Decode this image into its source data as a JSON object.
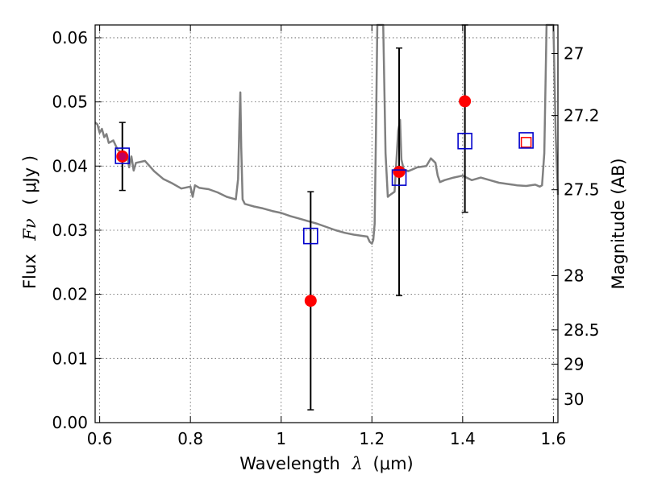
{
  "chart_data": {
    "type": "scatter",
    "title": "",
    "xlabel_text": "Wavelength",
    "xlabel_symbol": "λ",
    "xlabel_unit": "(μm)",
    "ylabel_text": "Flux",
    "ylabel_symbol": "Fν",
    "ylabel_unit": "( μJy )",
    "y2label": "Magnitude (AB)",
    "xlim": [
      0.59,
      1.61
    ],
    "ylim": [
      0.0,
      0.062
    ],
    "grid": true,
    "x_ticks": [
      {
        "value": 0.6,
        "label": "0.6"
      },
      {
        "value": 0.8,
        "label": "0.8"
      },
      {
        "value": 1.0,
        "label": "1"
      },
      {
        "value": 1.2,
        "label": "1.2"
      },
      {
        "value": 1.4,
        "label": "1.4"
      },
      {
        "value": 1.6,
        "label": "1.6"
      }
    ],
    "y_ticks": [
      {
        "value": 0.0,
        "label": "0.00"
      },
      {
        "value": 0.01,
        "label": "0.01"
      },
      {
        "value": 0.02,
        "label": "0.02"
      },
      {
        "value": 0.03,
        "label": "0.03"
      },
      {
        "value": 0.04,
        "label": "0.04"
      },
      {
        "value": 0.05,
        "label": "0.05"
      },
      {
        "value": 0.06,
        "label": "0.06"
      }
    ],
    "y2_ticks": [
      {
        "value": 27.0,
        "label": "27"
      },
      {
        "value": 27.2,
        "label": "27.2"
      },
      {
        "value": 27.5,
        "label": "27.5"
      },
      {
        "value": 28.0,
        "label": "28"
      },
      {
        "value": 28.5,
        "label": "28.5"
      },
      {
        "value": 29.0,
        "label": "29"
      },
      {
        "value": 30.0,
        "label": "30"
      }
    ],
    "observed": {
      "color": "#ff0000",
      "points": [
        {
          "x": 0.65,
          "y": 0.0415,
          "err": 0.0053
        },
        {
          "x": 1.065,
          "y": 0.019,
          "err": 0.017
        },
        {
          "x": 1.26,
          "y": 0.0391,
          "err": 0.0193
        },
        {
          "x": 1.405,
          "y": 0.0501,
          "err": 0.0173
        },
        {
          "x": 1.54,
          "y": 0.0437,
          "err": null
        }
      ]
    },
    "model": {
      "color": "#0000cc",
      "points": [
        {
          "x": 0.65,
          "y": 0.0416
        },
        {
          "x": 1.065,
          "y": 0.0291
        },
        {
          "x": 1.26,
          "y": 0.0382
        },
        {
          "x": 1.405,
          "y": 0.0439
        },
        {
          "x": 1.54,
          "y": 0.044
        }
      ]
    },
    "sed": {
      "color": "#808080",
      "x": [
        0.59,
        0.595,
        0.6,
        0.605,
        0.61,
        0.615,
        0.62,
        0.63,
        0.64,
        0.65,
        0.66,
        0.665,
        0.67,
        0.675,
        0.68,
        0.7,
        0.72,
        0.74,
        0.76,
        0.78,
        0.8,
        0.805,
        0.81,
        0.82,
        0.84,
        0.86,
        0.88,
        0.9,
        0.905,
        0.908,
        0.91,
        0.912,
        0.915,
        0.92,
        0.94,
        0.96,
        0.98,
        1.0,
        1.02,
        1.04,
        1.06,
        1.08,
        1.1,
        1.12,
        1.14,
        1.16,
        1.18,
        1.19,
        1.195,
        1.2,
        1.203,
        1.206,
        1.209,
        1.212,
        1.215,
        1.22,
        1.225,
        1.23,
        1.235,
        1.24,
        1.25,
        1.258,
        1.262,
        1.265,
        1.27,
        1.28,
        1.3,
        1.32,
        1.33,
        1.34,
        1.345,
        1.35,
        1.36,
        1.38,
        1.4,
        1.42,
        1.44,
        1.46,
        1.48,
        1.5,
        1.52,
        1.54,
        1.56,
        1.57,
        1.575,
        1.58,
        1.585,
        1.59,
        1.6,
        1.605,
        1.61
      ],
      "y": [
        0.0468,
        0.0465,
        0.0452,
        0.0458,
        0.0445,
        0.045,
        0.0436,
        0.044,
        0.0425,
        0.042,
        0.0418,
        0.0398,
        0.0415,
        0.0393,
        0.0405,
        0.0408,
        0.0392,
        0.038,
        0.0373,
        0.0365,
        0.0368,
        0.0352,
        0.037,
        0.0366,
        0.0364,
        0.0359,
        0.0352,
        0.0348,
        0.038,
        0.047,
        0.0515,
        0.043,
        0.0348,
        0.0341,
        0.0337,
        0.0334,
        0.033,
        0.0327,
        0.0322,
        0.0318,
        0.0314,
        0.031,
        0.0305,
        0.03,
        0.0296,
        0.0293,
        0.0291,
        0.029,
        0.0282,
        0.0279,
        0.0285,
        0.031,
        0.045,
        0.062,
        0.064,
        0.064,
        0.064,
        0.042,
        0.0352,
        0.0355,
        0.036,
        0.0455,
        0.0472,
        0.041,
        0.0395,
        0.0392,
        0.0398,
        0.04,
        0.0412,
        0.0405,
        0.0385,
        0.0375,
        0.0378,
        0.0382,
        0.0385,
        0.0378,
        0.0382,
        0.0378,
        0.0374,
        0.0372,
        0.037,
        0.0369,
        0.0371,
        0.0368,
        0.037,
        0.042,
        0.062,
        0.064,
        0.064,
        0.045,
        0.0355
      ]
    }
  }
}
